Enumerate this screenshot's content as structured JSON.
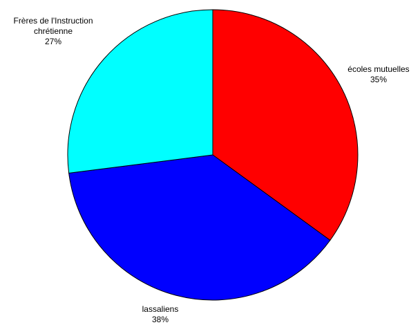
{
  "chart_data": {
    "type": "pie",
    "slices": [
      {
        "label_lines": [
          "écoles mutuelles"
        ],
        "percent_label": "35%",
        "value": 35,
        "color": "#ff0000"
      },
      {
        "label_lines": [
          "lassaliens"
        ],
        "percent_label": "38%",
        "value": 38,
        "color": "#0000ff"
      },
      {
        "label_lines": [
          "Frères de l'Instruction",
          "chrétienne"
        ],
        "percent_label": "27%",
        "value": 27,
        "color": "#00ffff"
      }
    ],
    "start_angle_deg": 0,
    "direction": "clockwise",
    "legend": "none"
  }
}
